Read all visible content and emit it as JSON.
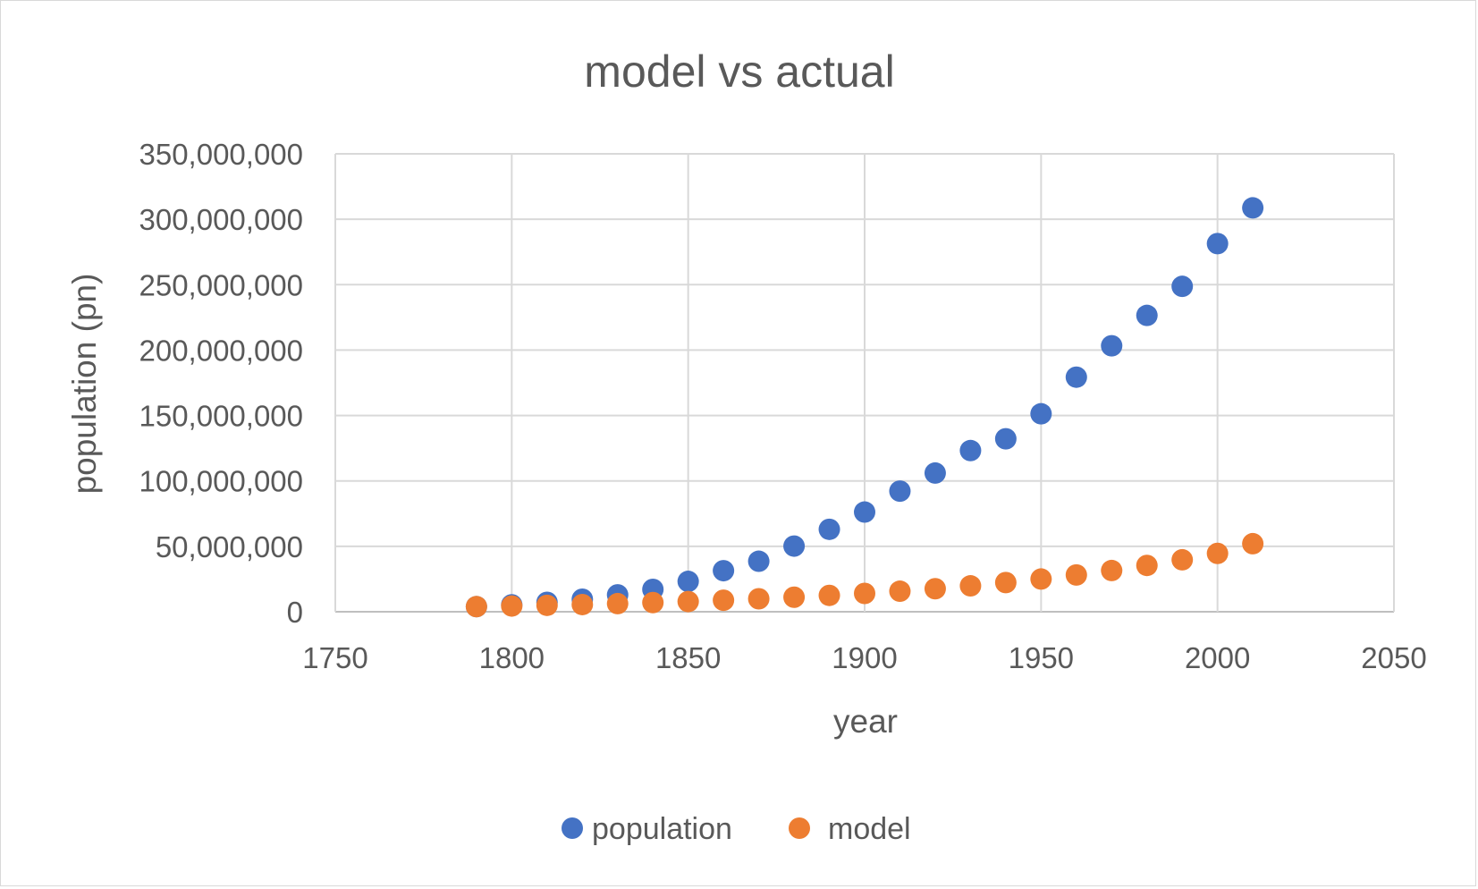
{
  "chart_data": {
    "type": "scatter",
    "title": "model vs actual",
    "xlabel": "year",
    "ylabel": "population (pn)",
    "xlim": [
      1750,
      2050
    ],
    "ylim": [
      0,
      350000000
    ],
    "x_ticks": [
      "1750",
      "1800",
      "1850",
      "1900",
      "1950",
      "2000",
      "2050"
    ],
    "y_ticks": [
      "0",
      "50,000,000",
      "100,000,000",
      "150,000,000",
      "200,000,000",
      "250,000,000",
      "300,000,000",
      "350,000,000"
    ],
    "grid": true,
    "legend_position": "bottom",
    "x": [
      1790,
      1800,
      1810,
      1820,
      1830,
      1840,
      1850,
      1860,
      1870,
      1880,
      1890,
      1900,
      1910,
      1920,
      1930,
      1940,
      1950,
      1960,
      1970,
      1980,
      1990,
      2000,
      2010
    ],
    "series": [
      {
        "name": "population",
        "color": "#4472c4",
        "values": [
          3900000,
          5300000,
          7200000,
          9600000,
          12900000,
          17100000,
          23200000,
          31400000,
          38600000,
          50200000,
          63000000,
          76200000,
          92200000,
          106000000,
          123200000,
          132200000,
          151300000,
          179300000,
          203300000,
          226500000,
          248700000,
          281400000,
          308700000
        ]
      },
      {
        "name": "model",
        "color": "#ed7d31",
        "values": [
          3900000,
          4400000,
          4900000,
          5500000,
          6200000,
          7000000,
          7800000,
          8800000,
          9900000,
          11100000,
          12500000,
          14000000,
          15700000,
          17600000,
          19800000,
          22300000,
          25000000,
          28100000,
          31500000,
          35400000,
          39700000,
          44600000,
          52000000
        ]
      }
    ]
  }
}
